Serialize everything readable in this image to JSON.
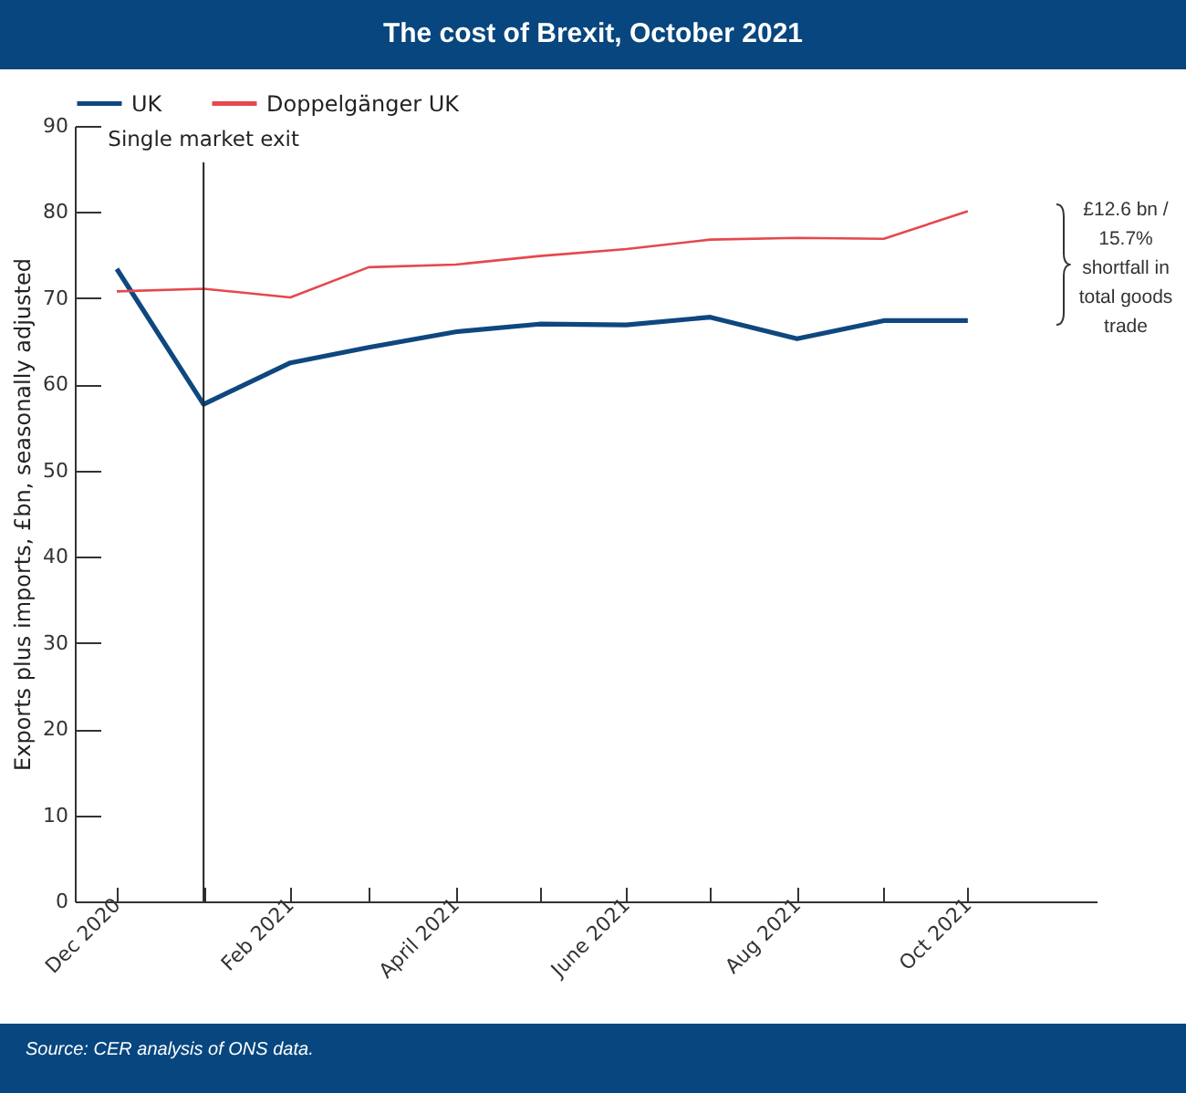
{
  "chart_data": {
    "type": "line",
    "title": "The cost of Brexit, October 2021",
    "ylabel": "Exports plus imports, £bn, seasonally adjusted",
    "x": [
      "2020-12",
      "2021-01",
      "2021-02",
      "2021-03",
      "2021-04",
      "2021-05",
      "2021-06",
      "2021-07",
      "2021-08",
      "2021-09",
      "2021-10"
    ],
    "series": [
      {
        "name": "UK",
        "color": "#0f477f",
        "values": [
          73.4,
          57.7,
          62.5,
          64.3,
          66.1,
          67.0,
          66.9,
          67.8,
          65.3,
          67.4,
          67.4
        ]
      },
      {
        "name": "Doppelgänger UK",
        "color": "#e5484d",
        "values": [
          70.8,
          71.1,
          70.1,
          73.6,
          73.9,
          74.9,
          75.7,
          76.8,
          77.0,
          76.9,
          80.1
        ]
      }
    ],
    "xlim": [
      "2020-11-16",
      "2021-11-16"
    ],
    "xticks": [
      {
        "value": "2020-12",
        "label": "Dec 2020"
      },
      {
        "value": "2021-01",
        "label": null
      },
      {
        "value": "2021-02",
        "label": "Feb 2021"
      },
      {
        "value": "2021-03",
        "label": null
      },
      {
        "value": "2021-04",
        "label": "April 2021"
      },
      {
        "value": "2021-05",
        "label": null
      },
      {
        "value": "2021-06",
        "label": "June 2021"
      },
      {
        "value": "2021-07",
        "label": null
      },
      {
        "value": "2021-08",
        "label": "Aug 2021"
      },
      {
        "value": "2021-09",
        "label": null
      },
      {
        "value": "2021-10",
        "label": "Oct 2021"
      }
    ],
    "ylim": [
      0,
      90
    ],
    "yticks": [
      0,
      10,
      20,
      30,
      40,
      50,
      60,
      70,
      80,
      90
    ],
    "ref_lines": [
      {
        "axis": "x",
        "value": "2021-01",
        "label": "Single market exit",
        "color": "#222222"
      }
    ],
    "annotations": [
      "£12.6 bn / 15.7% shortfall in total goods trade",
      "Source: CER analysis of ONS data."
    ],
    "legend": "top",
    "grid": false,
    "marker": "none"
  }
}
